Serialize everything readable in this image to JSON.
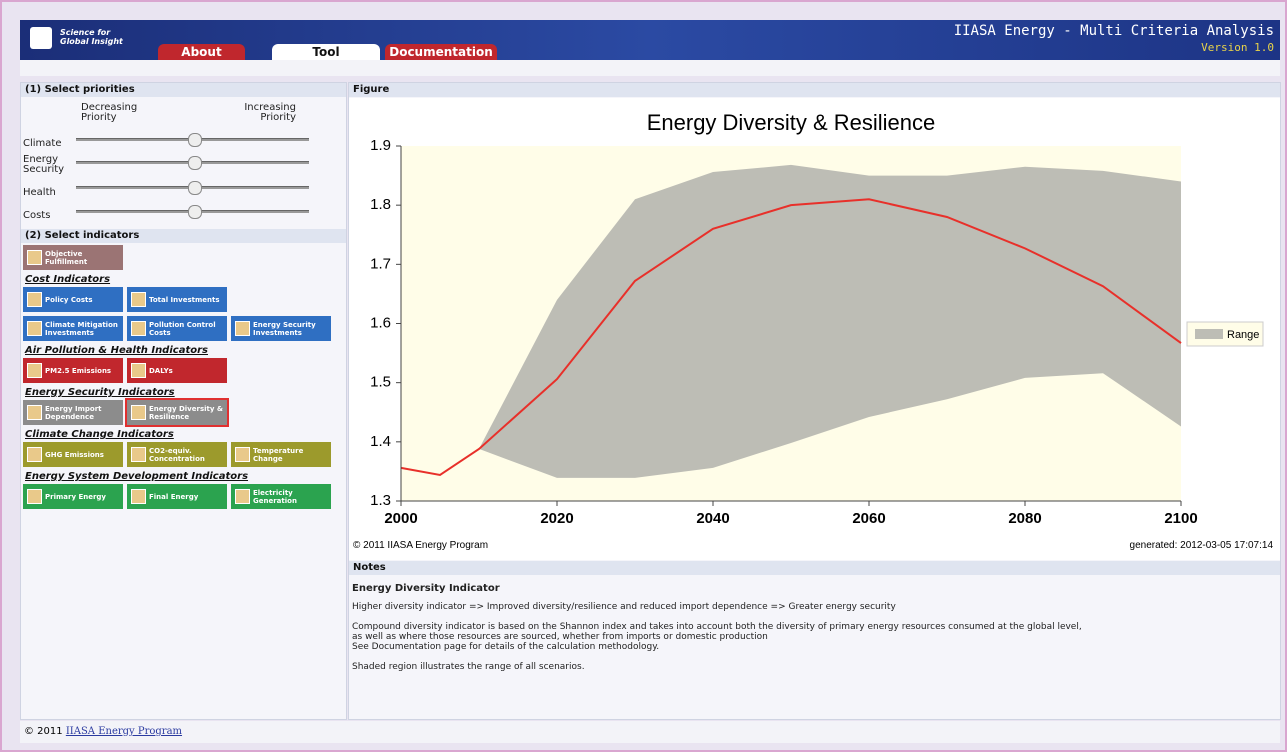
{
  "header": {
    "logo_line1": "Science for",
    "logo_line2": "Global Insight",
    "tabs": [
      "About",
      "Tool",
      "Documentation"
    ],
    "title": "IIASA Energy - Multi Criteria Analysis",
    "version": "Version 1.0"
  },
  "priorities": {
    "title": "(1) Select priorities",
    "decreasing": "Decreasing Priority",
    "increasing": "Increasing Priority",
    "sliders": [
      "Climate",
      "Energy Security",
      "Health",
      "Costs"
    ]
  },
  "indicators": {
    "title": "(2) Select indicators",
    "objective": "Objective Fulfillment",
    "groups": [
      {
        "title": "Cost Indicators",
        "color": "#2f6fc2",
        "rows": [
          [
            "Policy Costs",
            "Total Investments"
          ],
          [
            "Climate Mitigation Investments",
            "Pollution Control Costs",
            "Energy Security Investments"
          ]
        ]
      },
      {
        "title": "Air Pollution & Health Indicators",
        "color": "#c1272d",
        "rows": [
          [
            "PM2.5 Emissions",
            "DALYs"
          ]
        ]
      },
      {
        "title": "Energy Security Indicators",
        "color": "#8c8c8c",
        "rows": [
          [
            "Energy Import Dependence",
            "Energy Diversity & Resilience"
          ]
        ]
      },
      {
        "title": "Climate Change Indicators",
        "color": "#9c9a2c",
        "rows": [
          [
            "GHG Emissions",
            "CO2-equiv. Concentration",
            "Temperature Change"
          ]
        ]
      },
      {
        "title": "Energy System Development Indicators",
        "color": "#2ba34f",
        "rows": [
          [
            "Primary Energy",
            "Final Energy",
            "Electricity Generation"
          ]
        ]
      }
    ]
  },
  "figure_title": "Figure",
  "chart_data": {
    "type": "line",
    "title": "Energy Diversity & Resilience",
    "x": [
      2000,
      2005,
      2010,
      2020,
      2030,
      2040,
      2050,
      2060,
      2070,
      2080,
      2090,
      2100
    ],
    "series": [
      {
        "color": "#e8302a",
        "values": [
          1.356,
          1.344,
          1.388,
          1.506,
          1.672,
          1.76,
          1.8,
          1.81,
          1.78,
          1.727,
          1.663,
          1.567
        ]
      },
      {
        "name": "Range",
        "color": "#bdbdb5",
        "low": [
          null,
          null,
          1.388,
          1.339,
          1.339,
          1.356,
          1.398,
          1.442,
          1.472,
          1.508,
          1.516,
          1.426
        ],
        "high": [
          null,
          null,
          1.388,
          1.64,
          1.81,
          1.856,
          1.868,
          1.85,
          1.85,
          1.865,
          1.858,
          1.84
        ]
      }
    ],
    "xlim": [
      2000,
      2100
    ],
    "xticks": [
      2000,
      2020,
      2040,
      2060,
      2080,
      2100
    ],
    "ylim": [
      1.3,
      1.9
    ],
    "yticks": [
      1.3,
      1.4,
      1.5,
      1.6,
      1.7,
      1.8,
      1.9
    ],
    "plot_background": "#fffde8",
    "legend": "right",
    "credit": "© 2011 IIASA Energy Program",
    "generated": "generated: 2012-03-05 17:07:14"
  },
  "notes": {
    "title": "Notes",
    "heading": "Energy Diversity Indicator",
    "lines": [
      "Higher diversity indicator => Improved diversity/resilience and reduced import dependence => Greater energy security",
      "Compound diversity indicator is based on the Shannon index and takes into account both the diversity of primary energy resources consumed at the global level,",
      "as well as where those resources are sourced, whether from imports or domestic production",
      "See Documentation page for details of the calculation methodology.",
      "Shaded region illustrates the range of all scenarios."
    ]
  },
  "footer": {
    "copyright": "© 2011",
    "link": "IIASA Energy Program"
  }
}
